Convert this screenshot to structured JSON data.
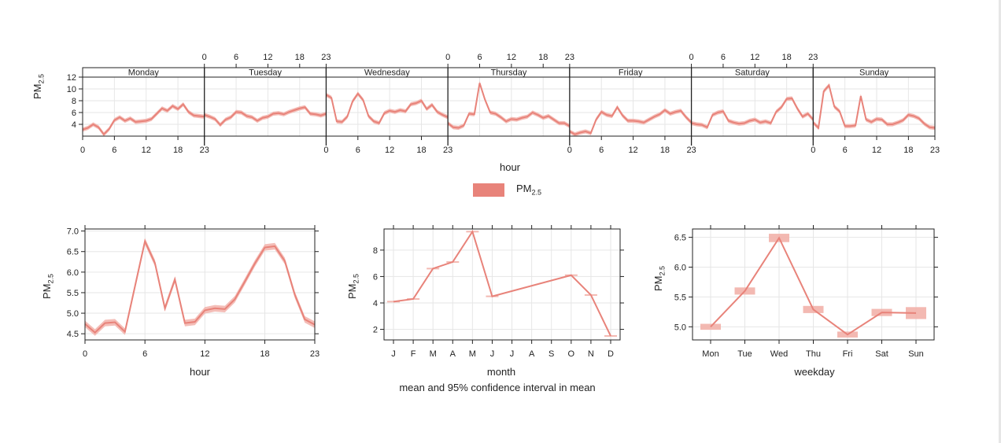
{
  "colors": {
    "series": "#e8837a",
    "band": "#f2b1aa",
    "legend": "#e8837a"
  },
  "labels": {
    "pm_main": "PM",
    "pm_sub": "2.5",
    "hour": "hour",
    "month": "month",
    "weekday": "weekday",
    "caption": "mean and 95% confidence interval in mean",
    "legend_main": "PM",
    "legend_sub": "2.5"
  },
  "chart_data": [
    {
      "type": "line",
      "panel": "day-hour",
      "days": [
        "Monday",
        "Tuesday",
        "Wednesday",
        "Thursday",
        "Friday",
        "Saturday",
        "Sunday"
      ],
      "hour_ticks": [
        "0",
        "6",
        "12",
        "18",
        "23"
      ],
      "ylim": [
        2,
        12
      ],
      "y_ticks": [
        "4",
        "6",
        "8",
        "10",
        "12"
      ],
      "series": [
        {
          "name": "Monday",
          "values": [
            3.1,
            3.4,
            4.0,
            3.5,
            2.3,
            3.2,
            4.7,
            5.2,
            4.6,
            5.0,
            4.4,
            4.5,
            4.6,
            4.9,
            5.8,
            6.7,
            6.3,
            7.1,
            6.6,
            7.4,
            6.1,
            5.5,
            5.4,
            5.3
          ]
        },
        {
          "name": "Tuesday",
          "values": [
            5.6,
            5.3,
            4.9,
            3.9,
            4.8,
            5.2,
            6.1,
            6.0,
            5.4,
            5.2,
            4.6,
            5.1,
            5.3,
            5.8,
            5.9,
            5.7,
            6.1,
            6.4,
            6.7,
            6.9,
            5.8,
            5.7,
            5.5,
            5.8
          ]
        },
        {
          "name": "Wednesday",
          "values": [
            9.0,
            8.5,
            4.5,
            4.4,
            5.3,
            7.9,
            9.2,
            8.1,
            5.4,
            4.5,
            4.2,
            5.9,
            6.3,
            6.1,
            6.4,
            6.2,
            7.4,
            7.6,
            8.0,
            6.6,
            7.3,
            6.1,
            5.6,
            5.2
          ]
        },
        {
          "name": "Thursday",
          "values": [
            4.2,
            3.5,
            3.4,
            3.8,
            5.8,
            5.7,
            11.0,
            8.2,
            6.0,
            5.8,
            5.2,
            4.5,
            4.9,
            4.8,
            5.1,
            5.3,
            6.0,
            5.6,
            5.1,
            5.4,
            4.8,
            4.2,
            4.2,
            3.7
          ]
        },
        {
          "name": "Friday",
          "values": [
            2.8,
            2.3,
            2.6,
            2.8,
            2.5,
            4.8,
            6.1,
            5.6,
            5.4,
            6.9,
            5.5,
            4.6,
            4.6,
            4.5,
            4.3,
            4.8,
            5.3,
            5.7,
            6.4,
            5.8,
            6.1,
            6.3,
            5.2,
            4.3
          ]
        },
        {
          "name": "Saturday",
          "values": [
            4.2,
            4.0,
            3.9,
            3.5,
            5.6,
            6.0,
            6.2,
            4.6,
            4.3,
            4.1,
            4.2,
            4.6,
            4.8,
            4.3,
            4.5,
            4.2,
            6.1,
            6.9,
            8.3,
            8.4,
            6.7,
            5.3,
            5.8,
            4.8
          ]
        },
        {
          "name": "Sunday",
          "values": [
            4.3,
            3.4,
            9.6,
            10.6,
            7.0,
            6.2,
            3.7,
            3.7,
            3.8,
            8.8,
            4.8,
            4.4,
            4.9,
            4.8,
            4.0,
            4.0,
            4.3,
            4.7,
            5.6,
            5.4,
            5.0,
            4.1,
            3.5,
            3.4
          ]
        }
      ]
    },
    {
      "type": "line",
      "panel": "hour",
      "x": [
        0,
        1,
        2,
        3,
        4,
        5,
        6,
        7,
        8,
        9,
        10,
        11,
        12,
        13,
        14,
        15,
        16,
        17,
        18,
        19,
        20,
        21,
        22,
        23
      ],
      "values": [
        4.74,
        4.53,
        4.76,
        4.78,
        4.55,
        5.65,
        6.75,
        6.22,
        5.12,
        5.82,
        4.76,
        4.79,
        5.07,
        5.12,
        5.1,
        5.34,
        5.77,
        6.21,
        6.6,
        6.63,
        6.27,
        5.45,
        4.85,
        4.72
      ],
      "x_ticks": [
        "0",
        "6",
        "12",
        "18",
        "23"
      ],
      "ylim": [
        4.35,
        7.05
      ],
      "y_ticks": [
        "4.5",
        "5.0",
        "5.5",
        "6.0",
        "6.5",
        "7.0"
      ]
    },
    {
      "type": "line",
      "panel": "month",
      "categories": [
        "J",
        "F",
        "M",
        "A",
        "M",
        "J",
        "J",
        "A",
        "S",
        "O",
        "N",
        "D"
      ],
      "values": [
        4.1,
        4.3,
        6.6,
        7.1,
        9.4,
        4.5,
        null,
        null,
        null,
        6.1,
        4.6,
        1.5
      ],
      "ylim": [
        1.2,
        9.6
      ],
      "y_ticks": [
        "2",
        "4",
        "6",
        "8"
      ]
    },
    {
      "type": "line",
      "panel": "weekday",
      "categories": [
        "Mon",
        "Tue",
        "Wed",
        "Thu",
        "Fri",
        "Sat",
        "Sun"
      ],
      "values": [
        5.0,
        5.6,
        6.49,
        5.29,
        4.87,
        5.24,
        5.23
      ],
      "ylim": [
        4.78,
        6.64
      ],
      "y_ticks": [
        "5.0",
        "5.5",
        "6.0",
        "6.5"
      ]
    }
  ]
}
